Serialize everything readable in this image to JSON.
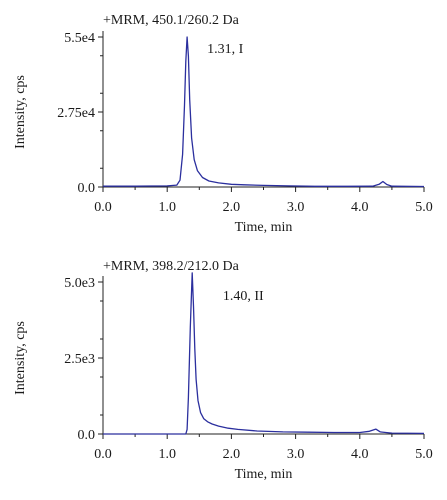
{
  "chart_data": [
    {
      "type": "line",
      "title": "+MRM, 450.1/260.2 Da",
      "xlabel": "Time, min",
      "ylabel": "Intensity, cps",
      "xlim": [
        0.0,
        5.0
      ],
      "ylim": [
        0,
        55000
      ],
      "x_ticks": [
        "0.0",
        "1.0",
        "2.0",
        "3.0",
        "4.0",
        "5.0"
      ],
      "y_ticks": [
        "0.0",
        "2.75e4",
        "5.5e4"
      ],
      "y_tick_values": [
        0,
        27500,
        55000
      ],
      "annotation": {
        "text": "1.31, I",
        "x": 1.31,
        "y": 55000
      },
      "series": [
        {
          "x": [
            0.0,
            0.5,
            1.0,
            1.15,
            1.2,
            1.24,
            1.27,
            1.29,
            1.31,
            1.33,
            1.35,
            1.38,
            1.42,
            1.47,
            1.55,
            1.65,
            1.8,
            2.0,
            2.2,
            2.5,
            2.9,
            3.3,
            3.8,
            4.2,
            4.3,
            4.36,
            4.42,
            4.5,
            5.0
          ],
          "y": [
            300,
            300,
            400,
            700,
            2500,
            12000,
            30000,
            46000,
            55000,
            48000,
            32000,
            18000,
            10000,
            6000,
            3500,
            2200,
            1500,
            1000,
            800,
            600,
            400,
            250,
            250,
            300,
            1000,
            2000,
            900,
            300,
            200
          ]
        }
      ]
    },
    {
      "type": "line",
      "title": "+MRM, 398.2/212.0 Da",
      "xlabel": "Time, min",
      "ylabel": "Intensity, cps",
      "xlim": [
        0.0,
        5.0
      ],
      "ylim": [
        0,
        5000
      ],
      "x_ticks": [
        "0.0",
        "1.0",
        "2.0",
        "3.0",
        "4.0",
        "5.0"
      ],
      "y_ticks": [
        "0.0",
        "2.5e3",
        "5.0e3"
      ],
      "y_tick_values": [
        0,
        2500,
        5000
      ],
      "annotation": {
        "text": "1.40, II",
        "x": 1.4,
        "y": 5000
      },
      "series": [
        {
          "x": [
            0.0,
            0.5,
            1.0,
            1.25,
            1.29,
            1.31,
            1.33,
            1.36,
            1.39,
            1.41,
            1.43,
            1.45,
            1.48,
            1.52,
            1.57,
            1.63,
            1.7,
            1.8,
            1.95,
            2.1,
            2.4,
            2.8,
            3.2,
            3.6,
            4.0,
            4.15,
            4.25,
            4.32,
            4.5,
            5.0
          ],
          "y": [
            0,
            0,
            0,
            0,
            0,
            150,
            1200,
            3500,
            5300,
            4200,
            2800,
            1800,
            1100,
            700,
            500,
            400,
            330,
            260,
            190,
            150,
            100,
            70,
            60,
            50,
            50,
            90,
            160,
            70,
            30,
            20
          ]
        }
      ]
    }
  ]
}
